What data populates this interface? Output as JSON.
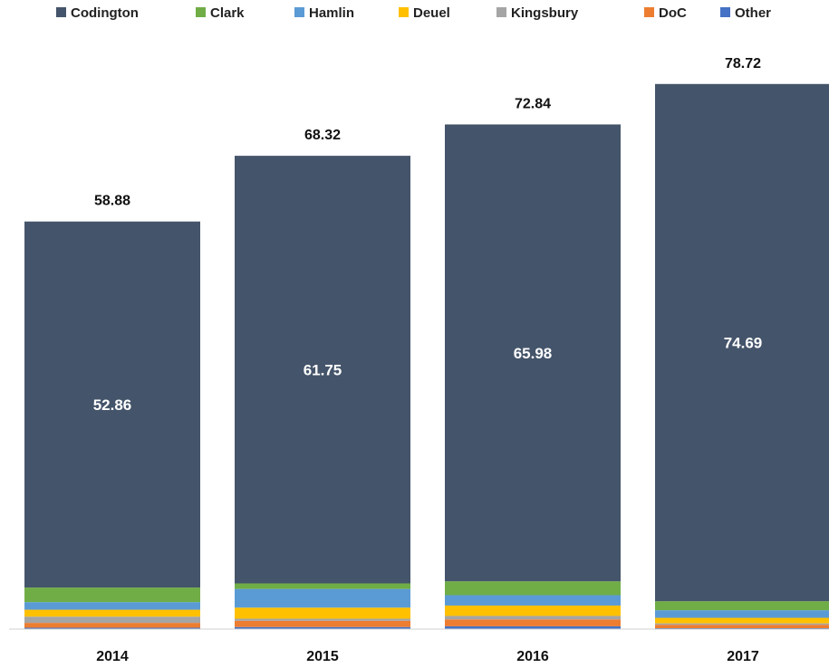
{
  "chart_data": {
    "type": "bar",
    "stacked": true,
    "categories": [
      "2014",
      "2015",
      "2016",
      "2017"
    ],
    "series": [
      {
        "name": "Codington",
        "color": "#44546A",
        "values": [
          52.86,
          61.75,
          65.98,
          74.69
        ]
      },
      {
        "name": "Clark",
        "color": "#70AD47",
        "values": [
          2.1,
          0.8,
          2.0,
          1.3
        ]
      },
      {
        "name": "Hamlin",
        "color": "#5B9BD5",
        "values": [
          1.1,
          2.7,
          1.5,
          1.1
        ]
      },
      {
        "name": "Deuel",
        "color": "#FFC000",
        "values": [
          1.0,
          1.6,
          1.5,
          0.8
        ]
      },
      {
        "name": "Kingsbury",
        "color": "#A5A5A5",
        "values": [
          0.9,
          0.3,
          0.5,
          0.2
        ]
      },
      {
        "name": "DoC",
        "color": "#ED7D31",
        "values": [
          0.7,
          0.9,
          1.0,
          0.5
        ]
      },
      {
        "name": "Other",
        "color": "#4472C4",
        "values": [
          0.2,
          0.3,
          0.4,
          0.13
        ]
      }
    ],
    "totals": [
      "58.88",
      "68.32",
      "72.84",
      "78.72"
    ],
    "inner_labels": [
      "52.86",
      "61.75",
      "65.98",
      "74.69"
    ],
    "ylim": [
      0,
      80
    ],
    "grid": false,
    "legend": "top"
  }
}
